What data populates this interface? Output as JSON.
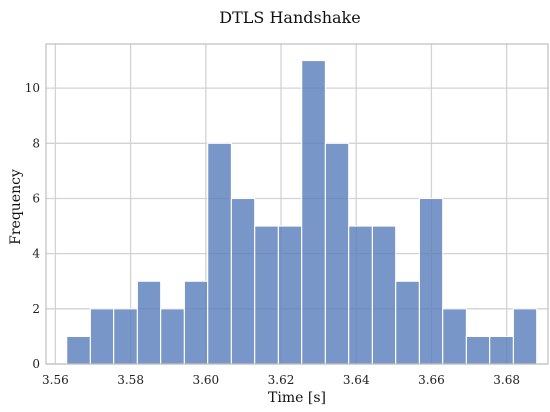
{
  "chart_data": {
    "type": "bar",
    "title": "DTLS Handshake",
    "xlabel": "Time [s]",
    "ylabel": "Frequency",
    "grid": true,
    "x_ticks": [
      "3.56",
      "3.58",
      "3.60",
      "3.62",
      "3.64",
      "3.66",
      "3.68"
    ],
    "y_ticks": [
      "0",
      "2",
      "4",
      "6",
      "8",
      "10"
    ],
    "xlim": [
      3.5575,
      3.691
    ],
    "ylim": [
      0,
      11.6
    ],
    "bins": [
      {
        "start": 3.563,
        "end": 3.5693,
        "count": 1
      },
      {
        "start": 3.5693,
        "end": 3.5755,
        "count": 2
      },
      {
        "start": 3.5755,
        "end": 3.5818,
        "count": 2
      },
      {
        "start": 3.5818,
        "end": 3.588,
        "count": 3
      },
      {
        "start": 3.588,
        "end": 3.5943,
        "count": 2
      },
      {
        "start": 3.5943,
        "end": 3.6005,
        "count": 3
      },
      {
        "start": 3.6005,
        "end": 3.6068,
        "count": 8
      },
      {
        "start": 3.6068,
        "end": 3.613,
        "count": 6
      },
      {
        "start": 3.613,
        "end": 3.6193,
        "count": 5
      },
      {
        "start": 3.6193,
        "end": 3.6255,
        "count": 5
      },
      {
        "start": 3.6255,
        "end": 3.6318,
        "count": 11
      },
      {
        "start": 3.6318,
        "end": 3.638,
        "count": 8
      },
      {
        "start": 3.638,
        "end": 3.6443,
        "count": 5
      },
      {
        "start": 3.6443,
        "end": 3.6505,
        "count": 5
      },
      {
        "start": 3.6505,
        "end": 3.6568,
        "count": 3
      },
      {
        "start": 3.6568,
        "end": 3.663,
        "count": 6
      },
      {
        "start": 3.663,
        "end": 3.6693,
        "count": 2
      },
      {
        "start": 3.6693,
        "end": 3.6755,
        "count": 1
      },
      {
        "start": 3.6755,
        "end": 3.6818,
        "count": 1
      },
      {
        "start": 3.6818,
        "end": 3.688,
        "count": 2
      }
    ],
    "colors": {
      "bar": "#5b7fbd",
      "grid": "#d3d3d3",
      "frame": "#bdbdbd"
    }
  }
}
